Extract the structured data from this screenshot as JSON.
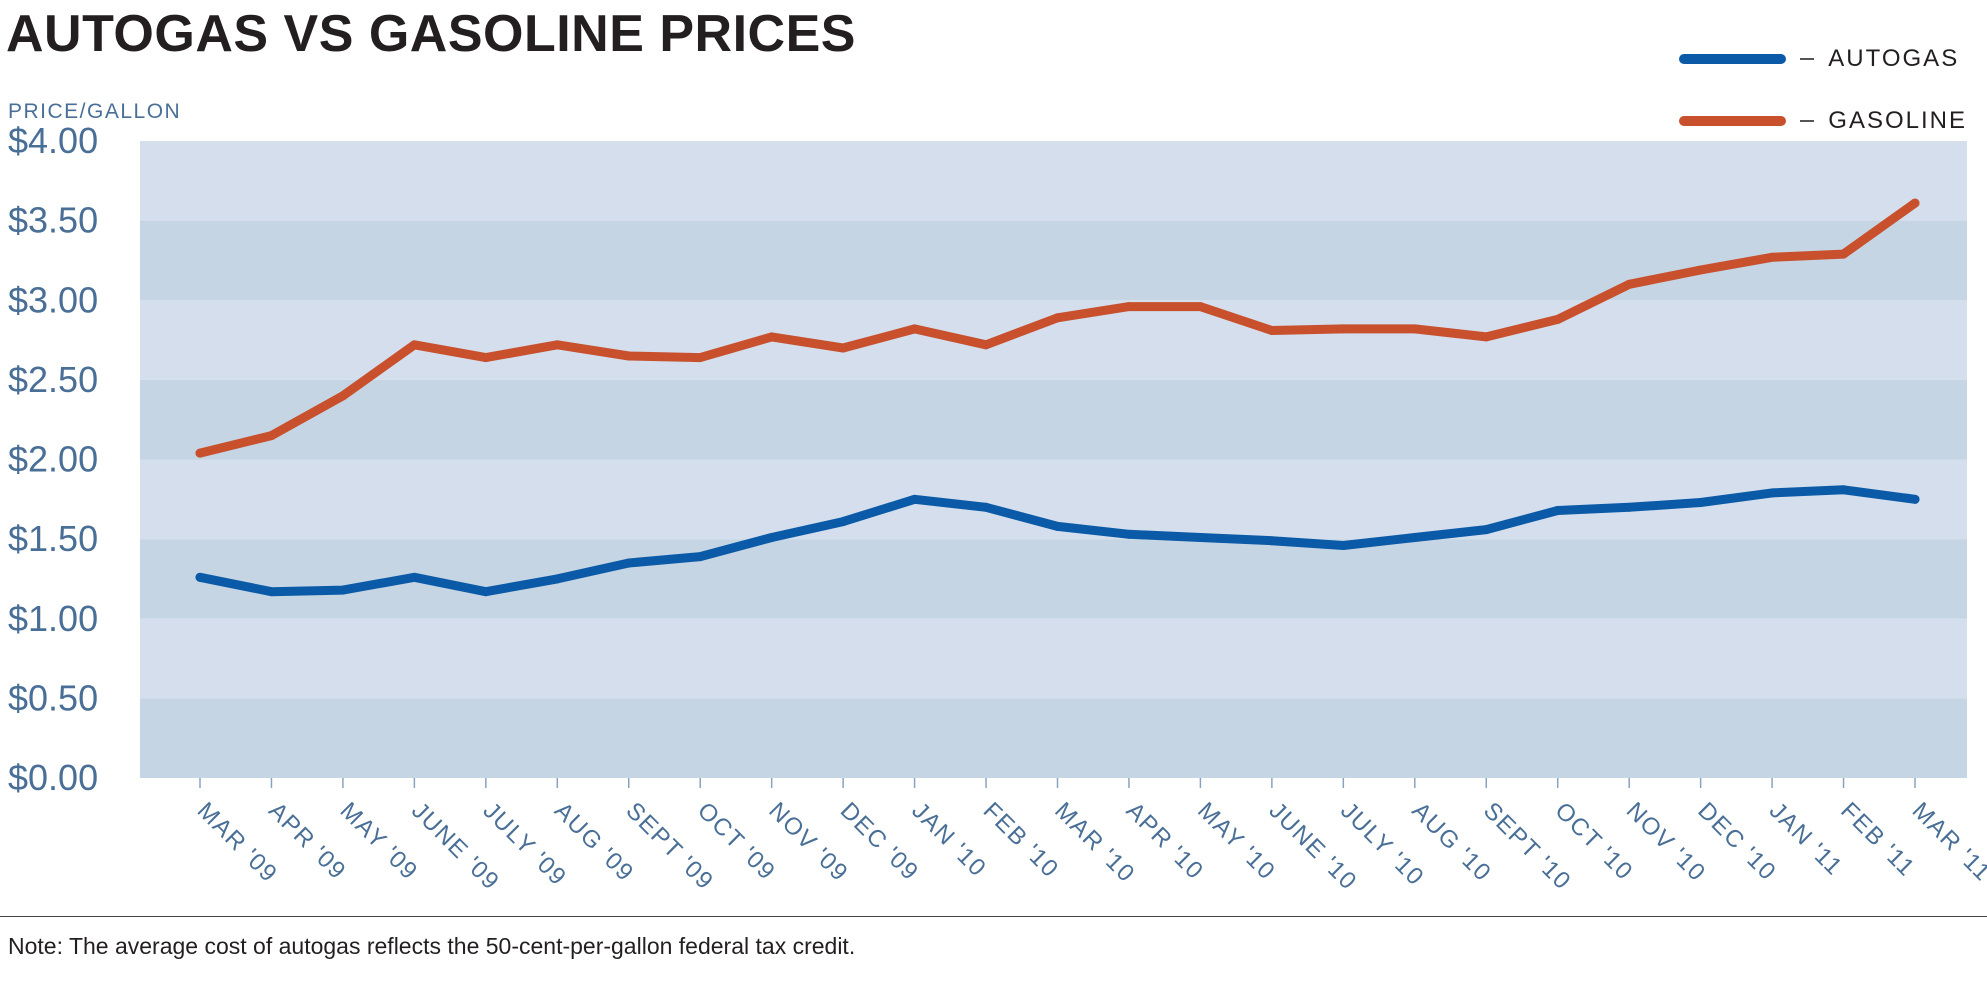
{
  "chart_data": {
    "type": "line",
    "title": "AUTOGAS VS GASOLINE PRICES",
    "ylabel": "PRICE/GALLON",
    "ylim": [
      0,
      4
    ],
    "y_ticks": [
      "$0.00",
      "$0.50",
      "$1.00",
      "$1.50",
      "$2.00",
      "$2.50",
      "$3.00",
      "$3.50",
      "$4.00"
    ],
    "y_tick_values": [
      0,
      0.5,
      1,
      1.5,
      2,
      2.5,
      3,
      3.5,
      4
    ],
    "categories": [
      "MAR '09",
      "APR '09",
      "MAY '09",
      "JUNE '09",
      "JULY '09",
      "AUG '09",
      "SEPT '09",
      "OCT '09",
      "NOV '09",
      "DEC '09",
      "JAN '10",
      "FEB '10",
      "MAR '10",
      "APR '10",
      "MAY '10",
      "JUNE '10",
      "JULY '10",
      "AUG '10",
      "SEPT '10",
      "OCT '10",
      "NOV '10",
      "DEC '10",
      "JAN '11",
      "FEB '11",
      "MAR '11"
    ],
    "series": [
      {
        "name": "AUTOGAS",
        "color": "#0a5aa8",
        "values": [
          1.26,
          1.17,
          1.18,
          1.26,
          1.17,
          1.25,
          1.35,
          1.39,
          1.51,
          1.61,
          1.75,
          1.7,
          1.58,
          1.53,
          1.51,
          1.49,
          1.46,
          1.51,
          1.56,
          1.68,
          1.7,
          1.73,
          1.79,
          1.81,
          1.75
        ]
      },
      {
        "name": "GASOLINE",
        "color": "#c8502d",
        "values": [
          2.04,
          2.15,
          2.4,
          2.72,
          2.64,
          2.72,
          2.65,
          2.64,
          2.77,
          2.7,
          2.82,
          2.72,
          2.89,
          2.96,
          2.96,
          2.81,
          2.82,
          2.82,
          2.77,
          2.88,
          3.1,
          3.19,
          3.27,
          3.29,
          3.61
        ]
      }
    ],
    "grid": true,
    "legend_position": "top-right",
    "background_band_colors": [
      "#c5d5e3",
      "#d4deec"
    ]
  },
  "legend": {
    "items": [
      {
        "label": "AUTOGAS",
        "color": "#0a5aa8"
      },
      {
        "label": "GASOLINE",
        "color": "#c8502d"
      }
    ]
  },
  "note": "Note: The average cost of autogas reflects the 50-cent-per-gallon federal tax credit."
}
